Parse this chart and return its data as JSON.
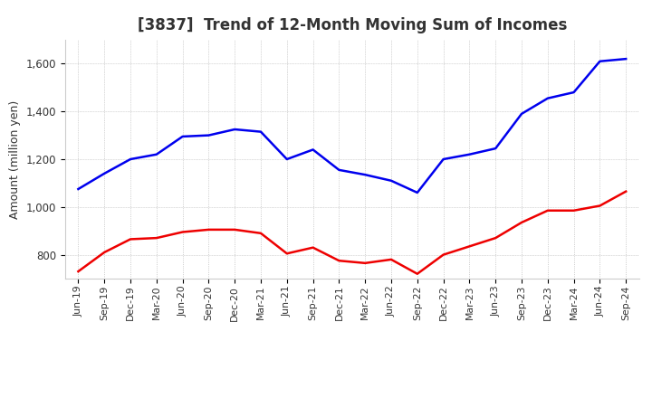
{
  "title": "[3837]  Trend of 12-Month Moving Sum of Incomes",
  "ylabel": "Amount (million yen)",
  "x_labels": [
    "Jun-19",
    "Sep-19",
    "Dec-19",
    "Mar-20",
    "Jun-20",
    "Sep-20",
    "Dec-20",
    "Mar-21",
    "Jun-21",
    "Sep-21",
    "Dec-21",
    "Mar-22",
    "Jun-22",
    "Sep-22",
    "Dec-22",
    "Mar-23",
    "Jun-23",
    "Sep-23",
    "Dec-23",
    "Mar-24",
    "Jun-24",
    "Sep-24"
  ],
  "ordinary_income": [
    1075,
    1140,
    1200,
    1220,
    1295,
    1300,
    1325,
    1315,
    1200,
    1240,
    1155,
    1135,
    1110,
    1060,
    1200,
    1220,
    1245,
    1390,
    1455,
    1480,
    1610,
    1620
  ],
  "net_income": [
    730,
    810,
    865,
    870,
    895,
    905,
    905,
    890,
    805,
    830,
    775,
    765,
    780,
    720,
    800,
    835,
    870,
    935,
    985,
    985,
    1005,
    1065
  ],
  "ordinary_color": "#0000EE",
  "net_color": "#EE0000",
  "ylim_min": 700,
  "ylim_max": 1700,
  "yticks": [
    800,
    1000,
    1200,
    1400,
    1600
  ],
  "background_color": "#FFFFFF",
  "grid_color": "#BBBBBB",
  "title_fontsize": 12,
  "title_color": "#333333",
  "line_width": 1.8
}
